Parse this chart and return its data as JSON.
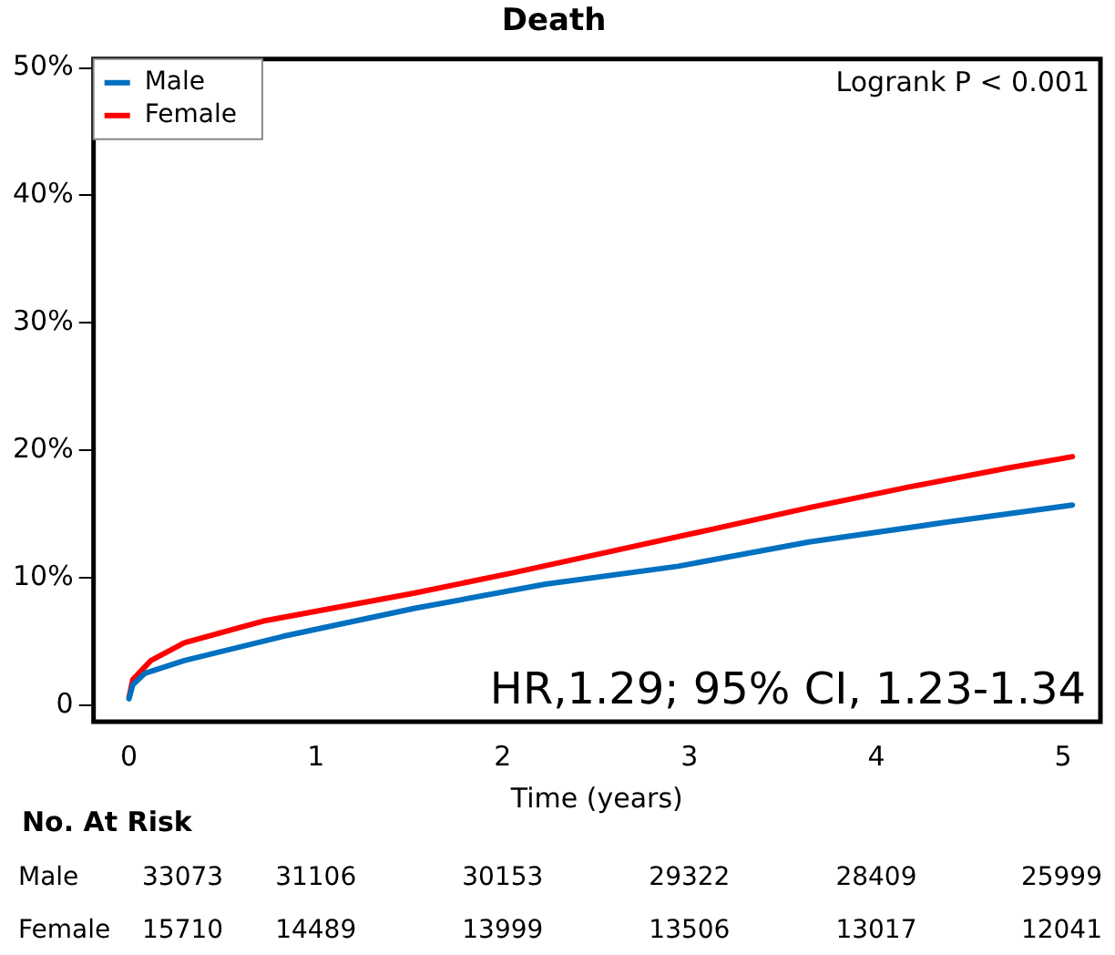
{
  "chart_data": {
    "type": "line",
    "title": "Death",
    "xlabel": "Time (years)",
    "xlim": [
      -0.19,
      5.2
    ],
    "xticks": [
      0,
      1,
      2,
      3,
      4,
      5
    ],
    "ylim": [
      -1.3,
      50.7
    ],
    "yticks": [
      {
        "value": 0,
        "label": "0"
      },
      {
        "value": 10,
        "label": "10%"
      },
      {
        "value": 20,
        "label": "20%"
      },
      {
        "value": 30,
        "label": "30%"
      },
      {
        "value": 40,
        "label": "40%"
      },
      {
        "value": 50,
        "label": "50%"
      }
    ],
    "series": [
      {
        "name": "Male",
        "color": "#0070c0",
        "x": [
          0,
          0.02,
          0.085,
          0.296,
          0.825,
          1.53,
          2.23,
          2.94,
          3.64,
          4.35,
          5.05
        ],
        "values": [
          0.5,
          1.6,
          2.5,
          3.5,
          5.4,
          7.6,
          9.5,
          10.9,
          12.8,
          14.3,
          15.7
        ]
      },
      {
        "name": "Female",
        "color": "#ff0000",
        "x": [
          0,
          0.02,
          0.117,
          0.296,
          0.719,
          1.53,
          2.06,
          2.59,
          3.12,
          3.64,
          4.17,
          4.7,
          5.05
        ],
        "values": [
          0.6,
          2.0,
          3.5,
          4.9,
          6.6,
          8.8,
          10.4,
          12.1,
          13.8,
          15.5,
          17.1,
          18.6,
          19.5
        ]
      }
    ],
    "legend": "top left",
    "grid": false,
    "marker": "none",
    "line_style": "solid",
    "annotations": [
      "Logrank P < 0.001",
      "HR,1.29; 95% CI, 1.23-1.34",
      "No. At Risk",
      "Male 33073 31106 30153 29322 28409 25999",
      "Female 15710 14489 13999 13506 13017 12041"
    ]
  }
}
